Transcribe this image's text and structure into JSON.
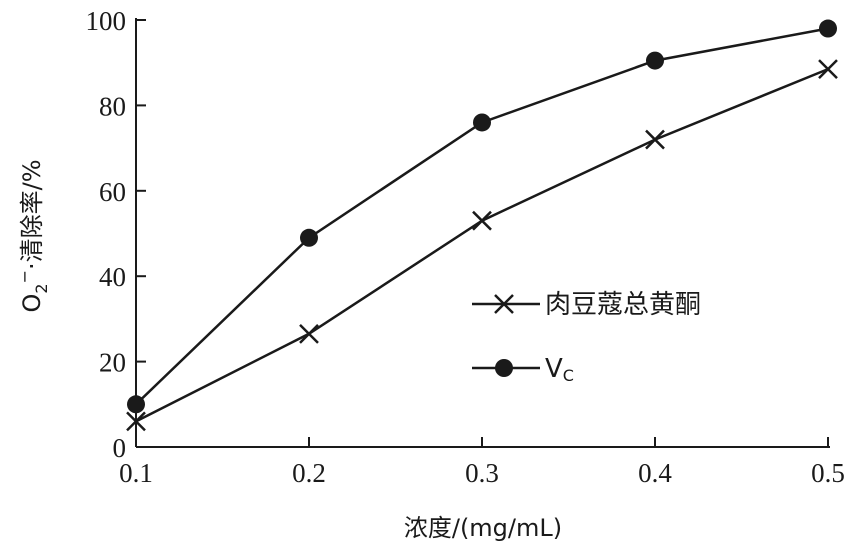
{
  "chart_data": {
    "type": "line",
    "title": "",
    "xlabel": "浓度/(mg/mL)",
    "ylabel_main": "O",
    "ylabel_sub": "2",
    "ylabel_sup": "−",
    "ylabel_rest": "·清除率/%",
    "x": [
      0.1,
      0.2,
      0.3,
      0.4,
      0.5
    ],
    "x_tick_labels": [
      "0.1",
      "0.2",
      "0.3",
      "0.4",
      "0.5"
    ],
    "xlim": [
      0.1,
      0.5
    ],
    "ylim": [
      0,
      100
    ],
    "y_ticks": [
      0,
      20,
      40,
      60,
      80,
      100
    ],
    "y_tick_labels": [
      "0",
      "20",
      "40",
      "60",
      "80",
      "100"
    ],
    "grid": false,
    "legend_position": "right-middle",
    "series": [
      {
        "name": "肉豆蔻总黄酮",
        "marker": "x-cross",
        "values": [
          6,
          26.5,
          53,
          72,
          88.5
        ]
      },
      {
        "name_main": "V",
        "name_sub": "C",
        "marker": "filled-circle",
        "values": [
          10,
          49,
          76,
          90.5,
          98
        ]
      }
    ],
    "line_color": "#1a1a1a"
  }
}
